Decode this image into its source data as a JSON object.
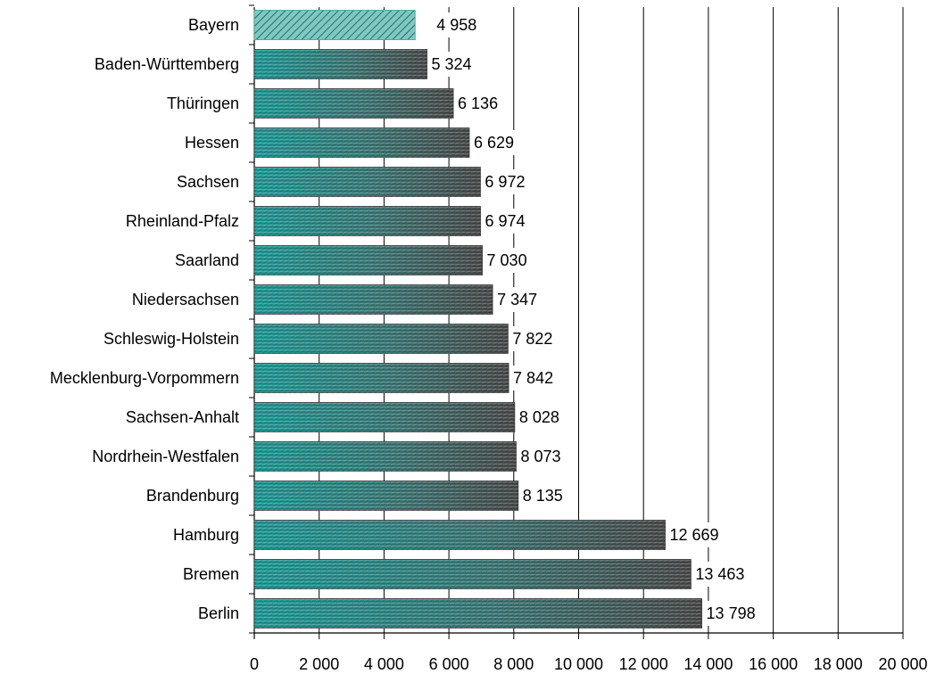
{
  "chart_data": {
    "type": "bar",
    "orientation": "horizontal",
    "categories": [
      "Bayern",
      "Baden-Württemberg",
      "Thüringen",
      "Hessen",
      "Sachsen",
      "Rheinland-Pfalz",
      "Saarland",
      "Niedersachsen",
      "Schleswig-Holstein",
      "Mecklenburg-Vorpommern",
      "Sachsen-Anhalt",
      "Nordrhein-Westfalen",
      "Brandenburg",
      "Hamburg",
      "Bremen",
      "Berlin"
    ],
    "values": [
      4958,
      5324,
      6136,
      6629,
      6972,
      6974,
      7030,
      7347,
      7822,
      7842,
      8028,
      8073,
      8135,
      12669,
      13463,
      13798
    ],
    "value_labels": [
      "4 958",
      "5 324",
      "6 136",
      "6 629",
      "6 972",
      "6 974",
      "7 030",
      "7 347",
      "7 822",
      "7 842",
      "8 028",
      "8 073",
      "8 135",
      "12 669",
      "13 463",
      "13 798"
    ],
    "highlighted_category": "Bayern",
    "xlim": [
      0,
      20000
    ],
    "xticks": [
      0,
      2000,
      4000,
      6000,
      8000,
      10000,
      12000,
      14000,
      16000,
      18000,
      20000
    ],
    "xtick_labels": [
      "0",
      "2 000",
      "4 000",
      "6 000",
      "8 000",
      "10 000",
      "12 000",
      "14 000",
      "16 000",
      "18 000",
      "20 000"
    ],
    "title": "",
    "xlabel": "",
    "ylabel": "",
    "grid": "vertical",
    "colors": {
      "bar_start": "#1f9a97",
      "bar_end": "#4a4a4a",
      "highlight": "#7fc8c2",
      "grid": "#000000",
      "axis": "#000000",
      "text": "#000000"
    }
  }
}
